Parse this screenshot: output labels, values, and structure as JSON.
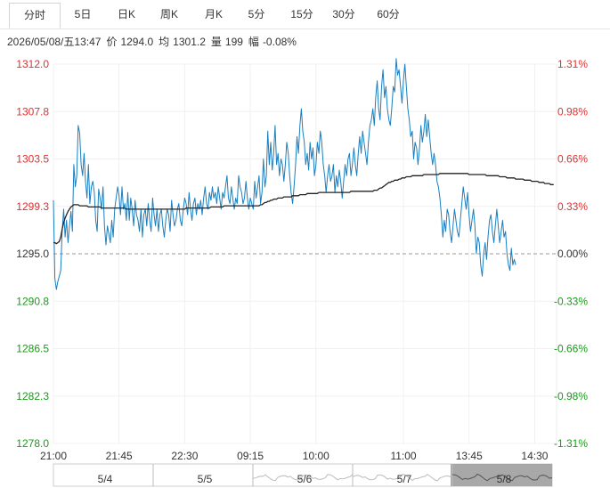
{
  "tabs": [
    {
      "label": "分时",
      "active": true
    },
    {
      "label": "5日",
      "active": false
    },
    {
      "label": "日K",
      "active": false
    },
    {
      "label": "周K",
      "active": false
    },
    {
      "label": "月K",
      "active": false
    },
    {
      "label": "5分",
      "active": false
    },
    {
      "label": "15分",
      "active": false
    },
    {
      "label": "30分",
      "active": false
    },
    {
      "label": "60分",
      "active": false
    }
  ],
  "info": {
    "datetime": "2026/05/08/五13:47",
    "price_label": "价",
    "price": "1294.0",
    "avg_label": "均",
    "avg": "1301.2",
    "volume_label": "量",
    "volume": "199",
    "change_label": "幅",
    "change": "-0.08%"
  },
  "colors": {
    "up": "#e03030",
    "down": "#1a9a1a",
    "neutral": "#333333",
    "price_line": "#1a7fc0",
    "avg_line": "#222222"
  },
  "chart_data": {
    "type": "line",
    "reference_price": 1295.0,
    "ylim": [
      1278.0,
      1312.0
    ],
    "y_ticks_left": [
      "1312.0",
      "1307.8",
      "1303.5",
      "1299.3",
      "1295.0",
      "1290.8",
      "1286.5",
      "1282.3",
      "1278.0"
    ],
    "y_ticks_right": [
      "1.31%",
      "0.98%",
      "0.66%",
      "0.33%",
      "0.00%",
      "-0.33%",
      "-0.66%",
      "-0.98%",
      "-1.31%"
    ],
    "x_ticks": [
      "21:00",
      "21:45",
      "22:30",
      "09:15",
      "10:00",
      "11:00",
      "13:45",
      "14:30"
    ],
    "x_tick_slots": [
      0,
      45,
      90,
      135,
      180,
      240,
      285,
      330
    ],
    "total_slots": 345,
    "series": [
      {
        "values": [
          1299.8,
          1292.8,
          1291.8,
          1292.5,
          1293.0,
          1293.5,
          1297.0,
          1299.0,
          1296.5,
          1298.0,
          1296.0,
          1297.5,
          1298.8,
          1297.0,
          1303.0,
          1301.0,
          1302.0,
          1306.5,
          1305.8,
          1303.0,
          1302.0,
          1304.0,
          1301.5,
          1300.0,
          1303.0,
          1299.5,
          1301.0,
          1301.5,
          1300.5,
          1298.0,
          1297.0,
          1300.8,
          1300.0,
          1299.0,
          1301.0,
          1297.5,
          1295.8,
          1297.5,
          1296.8,
          1296.0,
          1298.0,
          1296.5,
          1299.0,
          1300.0,
          1301.0,
          1300.2,
          1298.5,
          1301.0,
          1299.0,
          1299.5,
          1298.0,
          1300.5,
          1298.0,
          1300.0,
          1299.0,
          1297.5,
          1299.8,
          1298.5,
          1298.0,
          1297.0,
          1299.0,
          1296.5,
          1298.5,
          1299.0,
          1297.5,
          1299.5,
          1298.0,
          1297.0,
          1300.0,
          1298.5,
          1297.5,
          1299.0,
          1297.0,
          1298.5,
          1299.0,
          1297.5,
          1296.5,
          1298.0,
          1299.0,
          1298.5,
          1297.0,
          1299.8,
          1298.5,
          1297.5,
          1298.0,
          1299.0,
          1299.5,
          1298.0,
          1297.5,
          1299.0,
          1300.0,
          1299.5,
          1298.5,
          1300.5,
          1299.0,
          1298.0,
          1299.5,
          1300.0,
          1298.5,
          1299.5,
          1299.0,
          1299.8,
          1298.5,
          1300.0,
          1301.0,
          1299.5,
          1299.0,
          1300.5,
          1299.8,
          1301.0,
          1300.0,
          1300.5,
          1299.5,
          1301.0,
          1300.0,
          1299.0,
          1300.5,
          1300.0,
          1301.0,
          1302.0,
          1300.0,
          1299.5,
          1301.0,
          1300.0,
          1299.0,
          1300.0,
          1299.5,
          1302.0,
          1301.0,
          1300.5,
          1299.5,
          1300.0,
          1301.5,
          1300.0,
          1299.0,
          1300.0,
          1299.5,
          1299.0,
          1301.5,
          1300.0,
          1301.0,
          1302.0,
          1299.5,
          1300.5,
          1303.5,
          1301.0,
          1302.0,
          1306.0,
          1303.0,
          1305.0,
          1302.5,
          1304.0,
          1306.5,
          1303.0,
          1304.0,
          1302.0,
          1303.5,
          1303.0,
          1301.5,
          1303.0,
          1305.0,
          1304.0,
          1302.0,
          1300.5,
          1299.5,
          1301.0,
          1303.0,
          1305.5,
          1304.0,
          1306.5,
          1308.0,
          1306.0,
          1305.0,
          1303.0,
          1304.0,
          1302.5,
          1305.0,
          1303.5,
          1304.5,
          1302.0,
          1303.0,
          1305.0,
          1304.0,
          1306.0,
          1305.0,
          1303.0,
          1302.0,
          1300.5,
          1302.0,
          1303.0,
          1301.5,
          1302.0,
          1303.0,
          1300.5,
          1302.0,
          1301.0,
          1302.5,
          1301.5,
          1300.0,
          1301.5,
          1303.0,
          1302.0,
          1303.5,
          1304.0,
          1302.0,
          1303.0,
          1304.5,
          1303.0,
          1302.0,
          1304.0,
          1305.5,
          1304.0,
          1306.0,
          1305.0,
          1304.0,
          1303.0,
          1305.0,
          1306.5,
          1307.0,
          1308.0,
          1306.5,
          1309.0,
          1310.5,
          1308.0,
          1307.0,
          1310.0,
          1311.5,
          1309.0,
          1310.0,
          1308.0,
          1307.0,
          1306.5,
          1308.0,
          1310.0,
          1309.5,
          1312.5,
          1311.0,
          1311.5,
          1310.0,
          1308.5,
          1310.5,
          1312.0,
          1310.0,
          1308.0,
          1307.0,
          1305.5,
          1306.0,
          1303.5,
          1305.0,
          1304.5,
          1303.0,
          1304.5,
          1306.5,
          1305.0,
          1306.0,
          1307.5,
          1305.5,
          1307.0,
          1305.5,
          1304.0,
          1303.0,
          1304.0,
          1303.0,
          1301.5,
          1301.0,
          1300.0,
          1298.5,
          1296.5,
          1298.0,
          1297.0,
          1299.0,
          1298.5,
          1297.0,
          1296.0,
          1297.5,
          1299.0,
          1298.0,
          1297.0,
          1296.5,
          1298.0,
          1299.5,
          1301.0,
          1300.0,
          1299.0,
          1300.5,
          1298.5,
          1297.0,
          1298.0,
          1299.0,
          1297.5,
          1295.0,
          1296.5,
          1296.0,
          1294.0,
          1293.0,
          1295.0,
          1296.0,
          1294.5,
          1296.5,
          1298.0,
          1298.5,
          1297.0,
          1296.0,
          1297.5,
          1299.0,
          1297.5,
          1296.0,
          1297.0,
          1298.0,
          1296.5,
          1297.0,
          1295.0,
          1294.0,
          1293.5,
          1295.5,
          1294.0,
          1294.5,
          1294.0
        ]
      },
      {
        "values": [
          1296.0,
          1296.0,
          1295.9,
          1296.0,
          1296.1,
          1296.5,
          1297.2,
          1297.8,
          1298.2,
          1298.5,
          1298.8,
          1299.0,
          1299.2,
          1299.3,
          1299.4,
          1299.4,
          1299.4,
          1299.4,
          1299.3,
          1299.3,
          1299.3,
          1299.3,
          1299.3,
          1299.3,
          1299.2,
          1299.2,
          1299.2,
          1299.2,
          1299.2,
          1299.2,
          1299.2,
          1299.2,
          1299.2,
          1299.1,
          1299.1,
          1299.1,
          1299.1,
          1299.1,
          1299.1,
          1299.1,
          1299.1,
          1299.1,
          1299.1,
          1299.1,
          1299.1,
          1299.1,
          1299.1,
          1299.1,
          1299.1,
          1299.1,
          1299.0,
          1299.0,
          1299.0,
          1299.0,
          1299.0,
          1299.0,
          1299.0,
          1299.0,
          1299.0,
          1299.0,
          1299.0,
          1299.0,
          1299.0,
          1299.0,
          1299.0,
          1299.0,
          1299.0,
          1299.0,
          1299.0,
          1299.0,
          1299.0,
          1299.0,
          1299.0,
          1299.0,
          1299.0,
          1299.0,
          1299.0,
          1299.0,
          1299.0,
          1299.0,
          1299.0,
          1299.0,
          1299.0,
          1299.0,
          1299.0,
          1299.0,
          1299.0,
          1299.0,
          1299.0,
          1299.0,
          1299.0,
          1299.1,
          1299.1,
          1299.1,
          1299.1,
          1299.1,
          1299.1,
          1299.1,
          1299.1,
          1299.1,
          1299.1,
          1299.1,
          1299.1,
          1299.1,
          1299.1,
          1299.1,
          1299.1,
          1299.1,
          1299.2,
          1299.2,
          1299.2,
          1299.2,
          1299.2,
          1299.2,
          1299.2,
          1299.2,
          1299.2,
          1299.3,
          1299.3,
          1299.3,
          1299.3,
          1299.3,
          1299.3,
          1299.3,
          1299.3,
          1299.3,
          1299.3,
          1299.3,
          1299.3,
          1299.3,
          1299.3,
          1299.3,
          1299.3,
          1299.3,
          1299.3,
          1299.3,
          1299.3,
          1299.3,
          1299.3,
          1299.3,
          1299.3,
          1299.3,
          1299.4,
          1299.4,
          1299.5,
          1299.6,
          1299.6,
          1299.7,
          1299.7,
          1299.8,
          1299.8,
          1299.9,
          1299.9,
          1299.9,
          1300.0,
          1300.0,
          1300.0,
          1300.0,
          1300.1,
          1300.1,
          1300.1,
          1300.1,
          1300.1,
          1300.1,
          1300.2,
          1300.2,
          1300.2,
          1300.2,
          1300.2,
          1300.3,
          1300.3,
          1300.3,
          1300.3,
          1300.3,
          1300.4,
          1300.4,
          1300.4,
          1300.4,
          1300.4,
          1300.4,
          1300.4,
          1300.4,
          1300.5,
          1300.5,
          1300.5,
          1300.5,
          1300.5,
          1300.5,
          1300.5,
          1300.5,
          1300.5,
          1300.5,
          1300.5,
          1300.5,
          1300.5,
          1300.5,
          1300.5,
          1300.5,
          1300.5,
          1300.5,
          1300.5,
          1300.5,
          1300.5,
          1300.5,
          1300.6,
          1300.6,
          1300.6,
          1300.6,
          1300.6,
          1300.6,
          1300.6,
          1300.6,
          1300.6,
          1300.6,
          1300.6,
          1300.6,
          1300.6,
          1300.6,
          1300.6,
          1300.6,
          1300.7,
          1300.7,
          1300.7,
          1300.8,
          1300.9,
          1300.9,
          1301.0,
          1301.1,
          1301.2,
          1301.3,
          1301.4,
          1301.4,
          1301.5,
          1301.5,
          1301.6,
          1301.6,
          1301.6,
          1301.7,
          1301.7,
          1301.8,
          1301.8,
          1301.8,
          1301.9,
          1301.9,
          1301.9,
          1301.9,
          1302.0,
          1302.0,
          1302.0,
          1302.0,
          1302.0,
          1302.0,
          1302.0,
          1302.0,
          1302.1,
          1302.1,
          1302.1,
          1302.1,
          1302.1,
          1302.1,
          1302.1,
          1302.1,
          1302.1,
          1302.1,
          1302.1,
          1302.2,
          1302.2,
          1302.2,
          1302.2,
          1302.2,
          1302.2,
          1302.2,
          1302.2,
          1302.2,
          1302.2,
          1302.2,
          1302.2,
          1302.2,
          1302.2,
          1302.2,
          1302.2,
          1302.2,
          1302.2,
          1302.2,
          1302.2,
          1302.1,
          1302.1,
          1302.1,
          1302.1,
          1302.1,
          1302.1,
          1302.1,
          1302.1,
          1302.1,
          1302.1,
          1302.1,
          1302.1,
          1302.0,
          1302.0,
          1302.0,
          1302.0,
          1302.0,
          1302.0,
          1302.0,
          1302.0,
          1302.0,
          1301.9,
          1301.9,
          1301.9,
          1301.9,
          1301.9,
          1301.8,
          1301.8,
          1301.8,
          1301.8,
          1301.8,
          1301.8,
          1301.7,
          1301.7,
          1301.7,
          1301.7,
          1301.7,
          1301.7,
          1301.6,
          1301.6,
          1301.6,
          1301.6,
          1301.6,
          1301.5,
          1301.5,
          1301.5,
          1301.5,
          1301.5,
          1301.4,
          1301.4,
          1301.4,
          1301.4,
          1301.3,
          1301.3,
          1301.3,
          1301.3,
          1301.2,
          1301.2,
          1301.2
        ]
      }
    ]
  },
  "navigator": {
    "labels": [
      "5/4",
      "5/5",
      "5/6",
      "5/7",
      "5/8"
    ]
  }
}
